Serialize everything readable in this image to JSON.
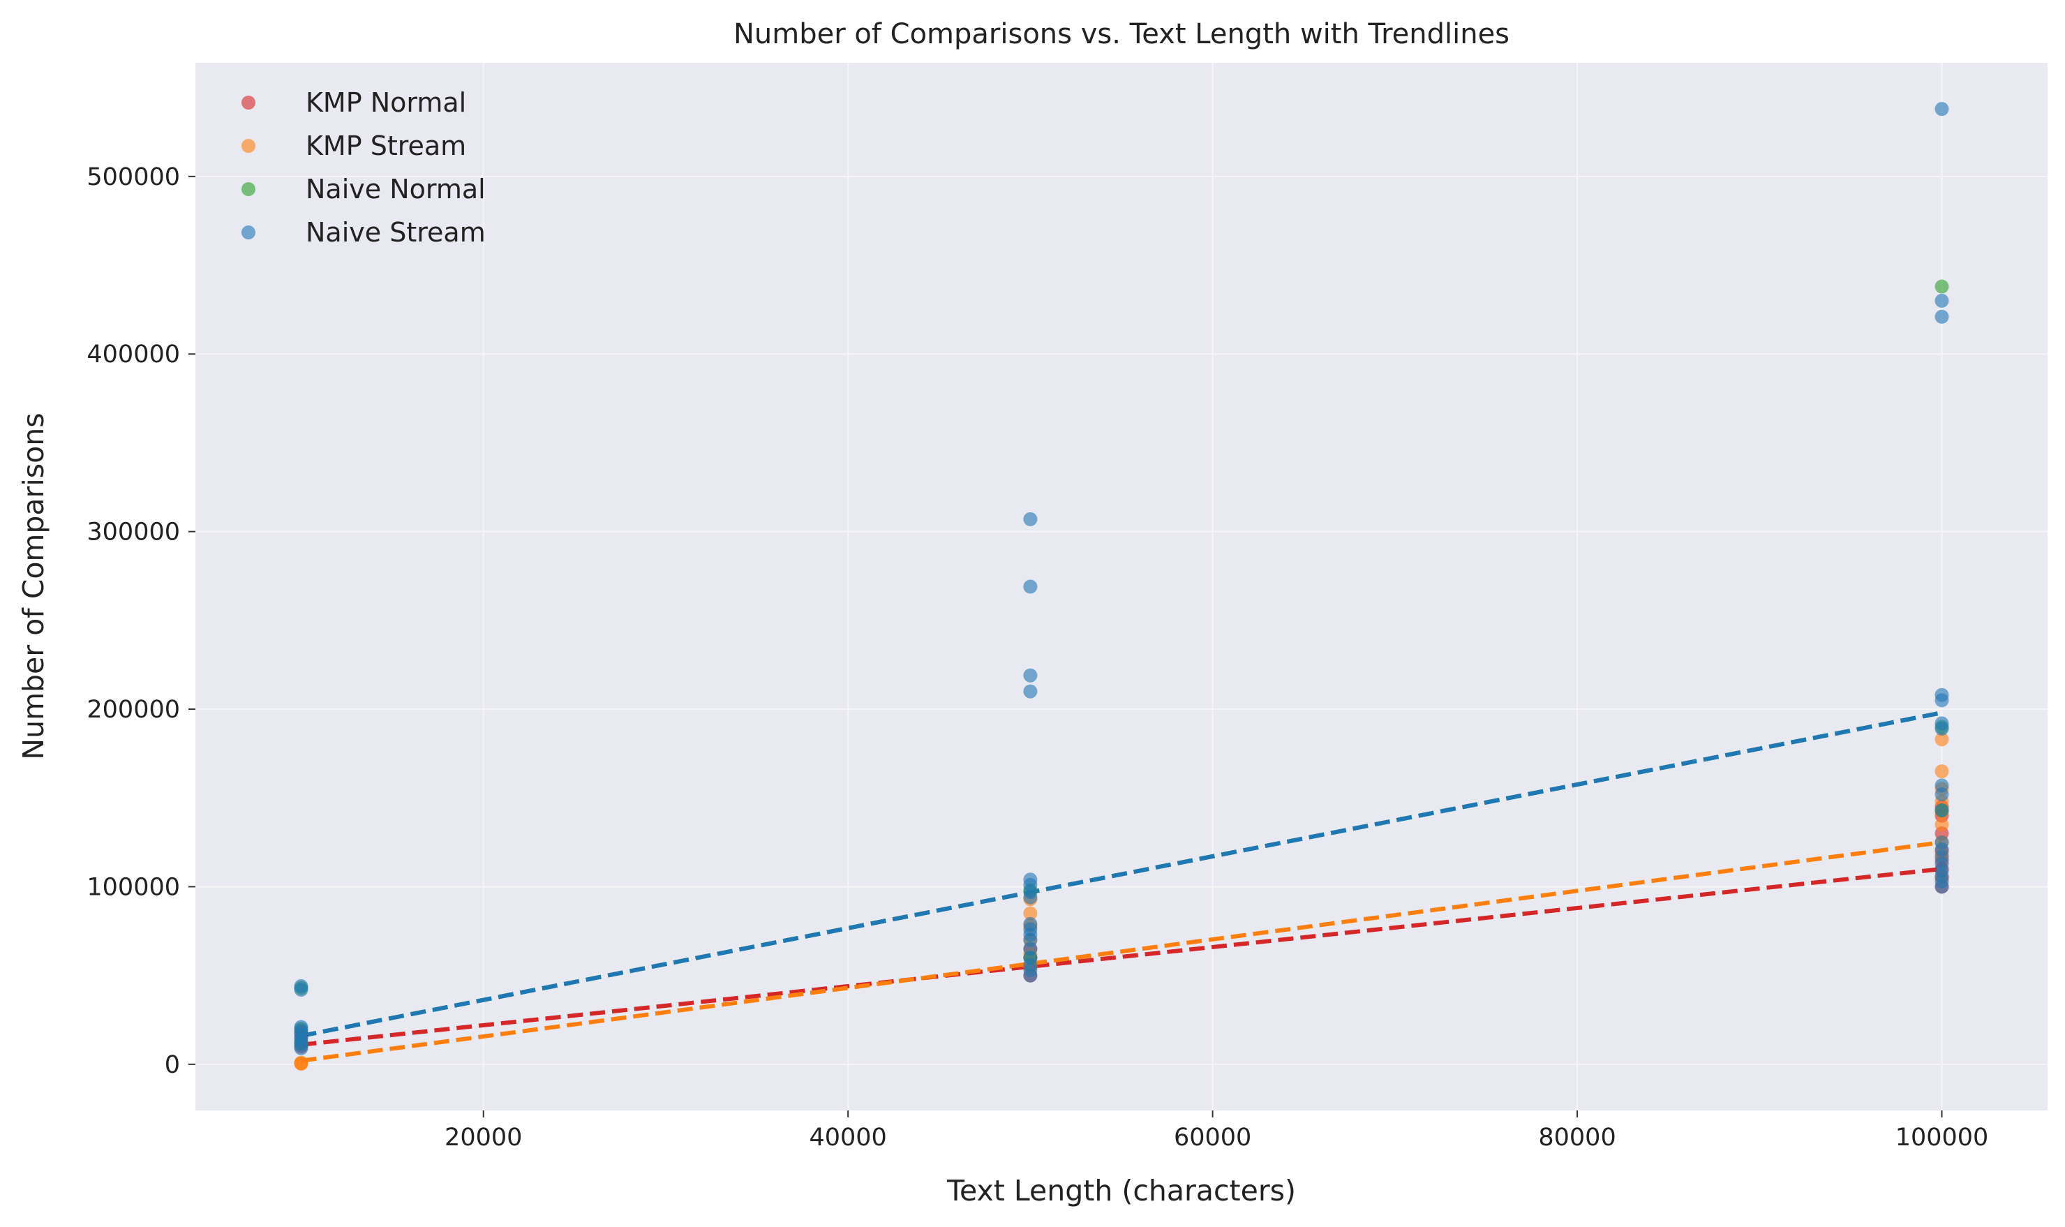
{
  "chart_data": {
    "type": "scatter",
    "title": "Number of Comparisons vs. Text Length with Trendlines",
    "xlabel": "Text Length (characters)",
    "ylabel": "Number of Comparisons",
    "xlim": [
      4200,
      105800
    ],
    "ylim": [
      -26000,
      564000
    ],
    "xticks": [
      20000,
      40000,
      60000,
      80000,
      100000
    ],
    "yticks": [
      0,
      100000,
      200000,
      300000,
      400000,
      500000
    ],
    "grid": true,
    "legend_position": "top-left",
    "background": "#e9e9f1",
    "series": [
      {
        "name": "KMP Normal",
        "color": "#d62728",
        "points": [
          [
            10000,
            10000
          ],
          [
            10000,
            12000
          ],
          [
            10000,
            15000
          ],
          [
            10000,
            18000
          ],
          [
            50000,
            50000
          ],
          [
            50000,
            55000
          ],
          [
            50000,
            60000
          ],
          [
            50000,
            65000
          ],
          [
            100000,
            100000
          ],
          [
            100000,
            105000
          ],
          [
            100000,
            110000
          ],
          [
            100000,
            115000
          ],
          [
            100000,
            120000
          ],
          [
            100000,
            130000
          ],
          [
            100000,
            140000
          ],
          [
            100000,
            145000
          ]
        ],
        "trend": [
          [
            10000,
            11000
          ],
          [
            100000,
            110000
          ]
        ]
      },
      {
        "name": "KMP Stream",
        "color": "#ff7f0e",
        "points": [
          [
            10000,
            300
          ],
          [
            10000,
            600
          ],
          [
            10000,
            900
          ],
          [
            50000,
            55000
          ],
          [
            50000,
            62000
          ],
          [
            50000,
            70000
          ],
          [
            50000,
            78000
          ],
          [
            50000,
            85000
          ],
          [
            50000,
            93000
          ],
          [
            100000,
            105000
          ],
          [
            100000,
            118000
          ],
          [
            100000,
            125000
          ],
          [
            100000,
            135000
          ],
          [
            100000,
            142000
          ],
          [
            100000,
            148000
          ],
          [
            100000,
            155000
          ],
          [
            100000,
            165000
          ],
          [
            100000,
            183000
          ]
        ],
        "trend": [
          [
            10000,
            2000
          ],
          [
            100000,
            125000
          ]
        ]
      },
      {
        "name": "Naive Normal",
        "color": "#2ca02c",
        "points": [
          [
            10000,
            12000
          ],
          [
            10000,
            20000
          ],
          [
            10000,
            43000
          ],
          [
            50000,
            60000
          ],
          [
            50000,
            98000
          ],
          [
            100000,
            143000
          ],
          [
            100000,
            190000
          ],
          [
            100000,
            438000
          ]
        ],
        "trend": [
          [
            10000,
            16000
          ],
          [
            100000,
            198000
          ]
        ]
      },
      {
        "name": "Naive Stream",
        "color": "#1f77b4",
        "points": [
          [
            10000,
            9000
          ],
          [
            10000,
            11000
          ],
          [
            10000,
            13000
          ],
          [
            10000,
            15000
          ],
          [
            10000,
            17000
          ],
          [
            10000,
            19000
          ],
          [
            10000,
            21000
          ],
          [
            10000,
            42000
          ],
          [
            10000,
            44000
          ],
          [
            50000,
            50000
          ],
          [
            50000,
            53000
          ],
          [
            50000,
            56000
          ],
          [
            50000,
            60000
          ],
          [
            50000,
            65000
          ],
          [
            50000,
            70000
          ],
          [
            50000,
            73000
          ],
          [
            50000,
            76000
          ],
          [
            50000,
            79000
          ],
          [
            50000,
            94000
          ],
          [
            50000,
            97000
          ],
          [
            50000,
            101000
          ],
          [
            50000,
            104000
          ],
          [
            50000,
            210000
          ],
          [
            50000,
            219000
          ],
          [
            50000,
            269000
          ],
          [
            50000,
            307000
          ],
          [
            100000,
            100000
          ],
          [
            100000,
            103000
          ],
          [
            100000,
            106000
          ],
          [
            100000,
            109000
          ],
          [
            100000,
            113000
          ],
          [
            100000,
            117000
          ],
          [
            100000,
            121000
          ],
          [
            100000,
            125000
          ],
          [
            100000,
            143000
          ],
          [
            100000,
            152000
          ],
          [
            100000,
            157000
          ],
          [
            100000,
            189000
          ],
          [
            100000,
            192000
          ],
          [
            100000,
            205000
          ],
          [
            100000,
            208000
          ],
          [
            100000,
            421000
          ],
          [
            100000,
            430000
          ],
          [
            100000,
            538000
          ]
        ],
        "trend": [
          [
            10000,
            16000
          ],
          [
            100000,
            198000
          ]
        ]
      }
    ]
  }
}
